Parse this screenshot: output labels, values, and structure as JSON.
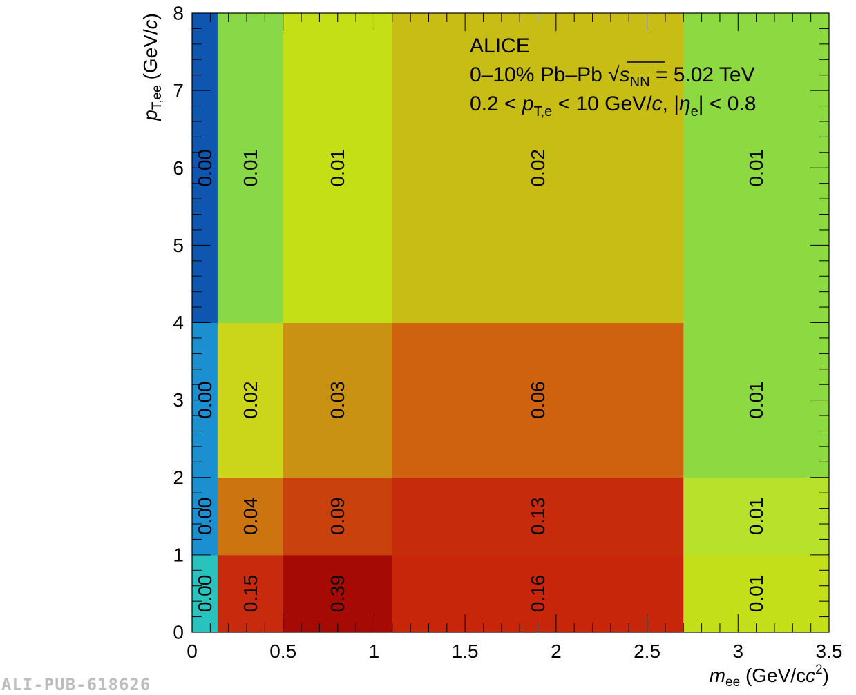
{
  "chart_data": {
    "type": "heatmap",
    "x_edges": [
      0,
      0.14,
      0.5,
      1.1,
      2.7,
      3.5
    ],
    "y_edges": [
      0,
      1,
      2,
      4,
      8
    ],
    "xlim": [
      0,
      3.5
    ],
    "ylim": [
      0,
      8
    ],
    "x_ticks": [
      "0",
      "0.5",
      "1",
      "1.5",
      "2",
      "2.5",
      "3",
      "3.5"
    ],
    "y_ticks": [
      "0",
      "1",
      "2",
      "3",
      "4",
      "5",
      "6",
      "7",
      "8"
    ],
    "values": [
      [
        0.0,
        0.15,
        0.39,
        0.16,
        0.01
      ],
      [
        0.0,
        0.04,
        0.09,
        0.13,
        0.01
      ],
      [
        0.0,
        0.02,
        0.03,
        0.06,
        0.01
      ],
      [
        0.0,
        0.01,
        0.01,
        0.02,
        0.01
      ]
    ],
    "labels": [
      [
        "0.00",
        "0.15",
        "0.39",
        "0.16",
        "0.01"
      ],
      [
        "0.00",
        "0.04",
        "0.09",
        "0.13",
        "0.01"
      ],
      [
        "0.00",
        "0.02",
        "0.03",
        "0.06",
        "0.01"
      ],
      [
        "0.00",
        "0.01",
        "0.01",
        "0.02",
        "0.01"
      ]
    ],
    "cell_colors": [
      [
        "#29c2bd",
        "#c72a0d",
        "#a60a05",
        "#c8260a",
        "#c2df1a"
      ],
      [
        "#1b8fcf",
        "#cc740f",
        "#c9410c",
        "#c62b0b",
        "#b8e12b"
      ],
      [
        "#1b8fcf",
        "#cbd519",
        "#c99213",
        "#cf620e",
        "#8dd941"
      ],
      [
        "#0f56b0",
        "#89d848",
        "#c4df15",
        "#c7bd15",
        "#8dd941"
      ]
    ],
    "xlabel": {
      "main": "m",
      "sub": "ee",
      "unit": " (GeV/c",
      "sup": "2",
      "close": ")"
    },
    "ylabel": {
      "main": "p",
      "sub": "T,ee",
      "unit": " (GeV/c)"
    },
    "annotations": {
      "line1": "ALICE",
      "line2_pre": "0–10% Pb–Pb ",
      "line2_s": "s",
      "line2_sub": "NN",
      "line2_post": " = 5.02 TeV",
      "line3_pre": "0.2 < ",
      "line3_p": "p",
      "line3_sub": "T,e",
      "line3_mid": " < 10 GeV/",
      "line3_c": "c",
      "line3_eta_pre": ", |",
      "line3_eta": "η",
      "line3_eta_sub": "e",
      "line3_post": "| < 0.8"
    }
  },
  "watermark": "ALI-PUB-618626"
}
